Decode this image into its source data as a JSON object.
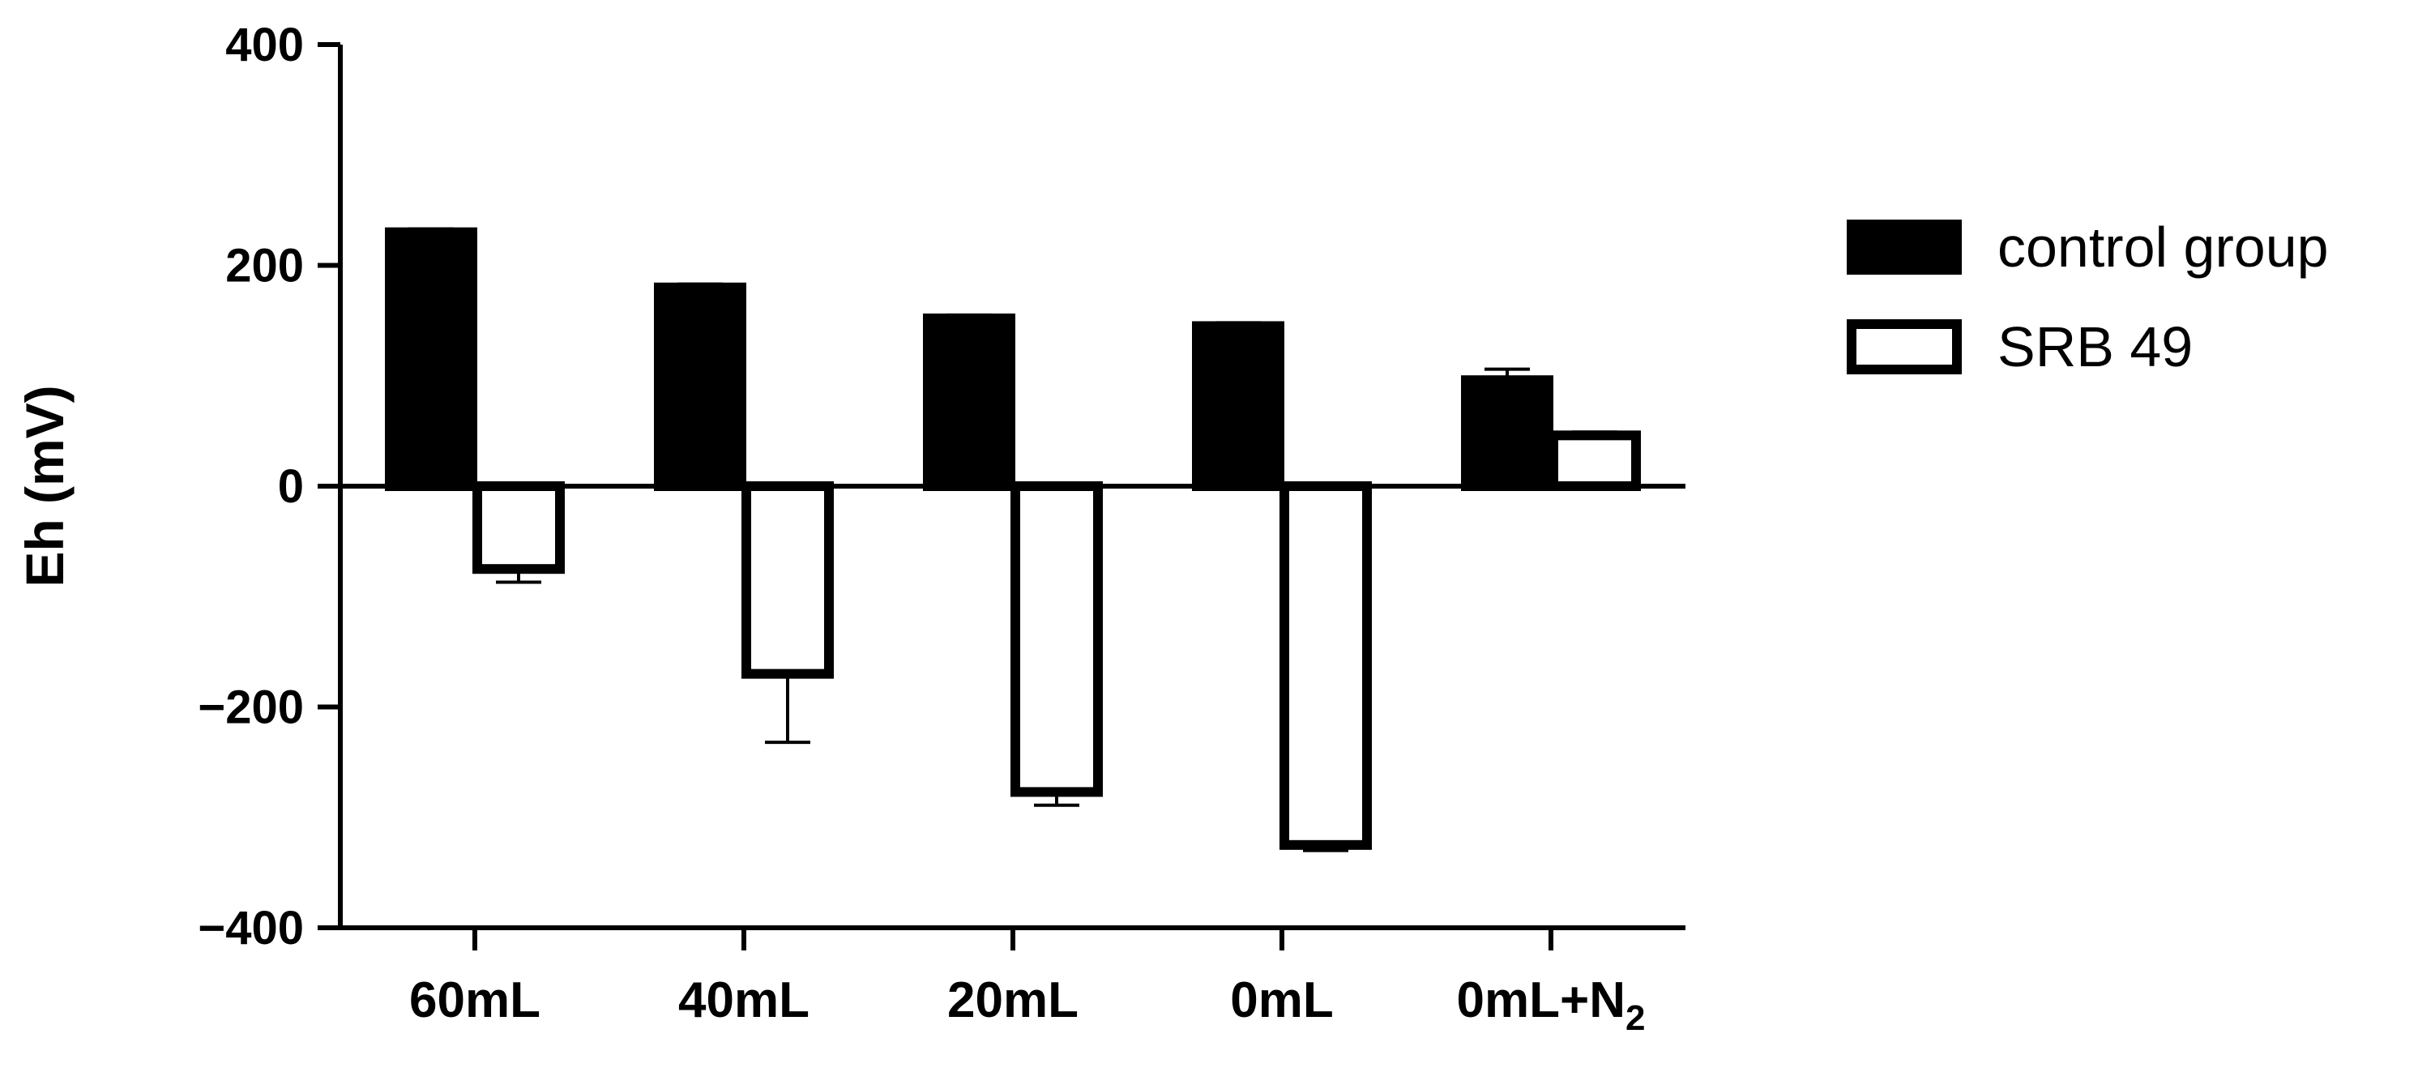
{
  "chart_data": {
    "type": "bar",
    "title": "",
    "xlabel": "",
    "ylabel": "Eh (mV)",
    "ylim": [
      -400,
      400
    ],
    "yticks": [
      400,
      200,
      0,
      -200,
      -400
    ],
    "ytick_labels": [
      "400",
      "200",
      "0",
      "−200",
      "−400"
    ],
    "categories": [
      {
        "main": "60mL",
        "sub": ""
      },
      {
        "main": "40mL",
        "sub": ""
      },
      {
        "main": "20mL",
        "sub": ""
      },
      {
        "main": "0mL",
        "sub": ""
      },
      {
        "main": "0mL+N",
        "sub": "2"
      }
    ],
    "series": [
      {
        "name": "control group",
        "fill": "#000000",
        "values": [
          230,
          180,
          152,
          145,
          96
        ],
        "errors": [
          3,
          3,
          3,
          3,
          10
        ]
      },
      {
        "name": "SRB 49",
        "fill": "#ffffff",
        "values": [
          -75,
          -170,
          -277,
          -325,
          46
        ],
        "errors": [
          12,
          62,
          12,
          5,
          3
        ]
      }
    ],
    "legend_position": "right",
    "grid": false
  }
}
